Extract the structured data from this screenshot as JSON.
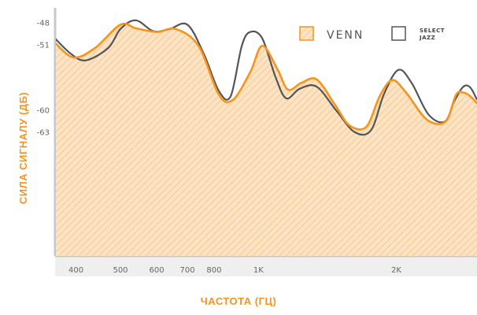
{
  "chart_data": {
    "type": "area",
    "xlabel": "ЧАСТОТА (ГЦ)",
    "ylabel": "СИЛА СИГНАЛУ (ДБ)",
    "x_scale": "log",
    "x_ticks": [
      {
        "value": 400,
        "label": "400"
      },
      {
        "value": 500,
        "label": "500"
      },
      {
        "value": 600,
        "label": "600"
      },
      {
        "value": 700,
        "label": "700"
      },
      {
        "value": 800,
        "label": "800"
      },
      {
        "value": 1000,
        "label": "1K"
      },
      {
        "value": 2000,
        "label": "2K"
      }
    ],
    "y_ticks": [
      {
        "value": -48,
        "label": "-48"
      },
      {
        "value": -51,
        "label": "-51"
      },
      {
        "value": -60,
        "label": "-60"
      },
      {
        "value": -63,
        "label": "-63"
      }
    ],
    "xlim": [
      360,
      3000
    ],
    "ylim": [
      -80,
      -46
    ],
    "grid": false,
    "legend_position": "top-right",
    "colors": {
      "accent": "#f7941d",
      "dark": "#555555",
      "fill": "#fbe3c4",
      "hatch": "#f6c88f",
      "frame": "#c8c8c8"
    },
    "series": [
      {
        "name": "VENN",
        "color": "#f7941d",
        "x": [
          360,
          395,
          440,
          500,
          540,
          600,
          660,
          740,
          820,
          880,
          960,
          1020,
          1100,
          1160,
          1240,
          1340,
          1470,
          1580,
          1720,
          1840,
          1960,
          2100,
          2330,
          2560,
          2700,
          2800,
          2900,
          3000
        ],
        "y": [
          -50.8,
          -52.8,
          -51.5,
          -48.3,
          -48.8,
          -49.3,
          -48.9,
          -51.2,
          -57.9,
          -58.6,
          -54.8,
          -51.2,
          -54.4,
          -57.2,
          -56.3,
          -55.8,
          -59.3,
          -62.1,
          -62.3,
          -58.1,
          -55.9,
          -57.6,
          -61.3,
          -61.6,
          -57.9,
          -57.6,
          -58.1,
          -59.1
        ]
      },
      {
        "name": "SELECT\nJAZZ",
        "color": "#555555",
        "x": [
          360,
          390,
          420,
          470,
          500,
          540,
          590,
          640,
          700,
          760,
          820,
          870,
          920,
          960,
          1020,
          1090,
          1150,
          1230,
          1340,
          1480,
          1620,
          1760,
          1880,
          2020,
          2160,
          2350,
          2550,
          2680,
          2800,
          2900,
          3000
        ],
        "y": [
          -50.2,
          -52.3,
          -53.2,
          -51.5,
          -48.9,
          -47.7,
          -49.2,
          -48.9,
          -48.3,
          -52.3,
          -57.4,
          -58.1,
          -51.2,
          -49.3,
          -50.2,
          -55.5,
          -58.4,
          -57.1,
          -56.8,
          -60.1,
          -63.0,
          -62.8,
          -57.8,
          -54.5,
          -56.3,
          -60.6,
          -61.6,
          -58.7,
          -56.8,
          -56.9,
          -58.6
        ]
      }
    ]
  },
  "legend": {
    "venn_label": "VENN",
    "jazz_line1": "SELECT",
    "jazz_line2": "JAZZ"
  }
}
